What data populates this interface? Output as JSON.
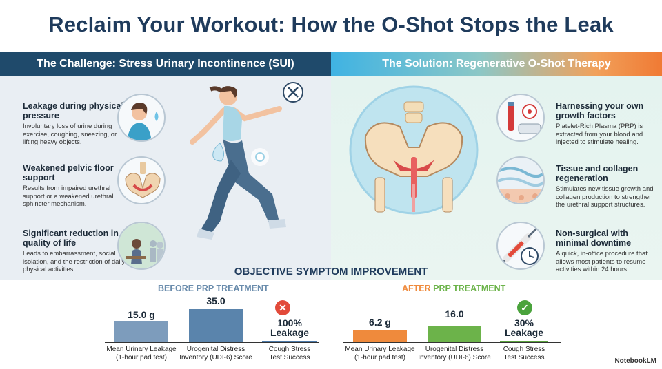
{
  "title": "Reclaim Your Workout: How the O-Shot Stops the Leak",
  "bands": {
    "left": "The Challenge: Stress Urinary Incontinence (SUI)",
    "right": "The Solution: Regenerative O-Shot Therapy"
  },
  "challenge": [
    {
      "heading": "Leakage during physical pressure",
      "desc": "Involuntary loss of urine during exercise, coughing, sneezing, or lifting heavy objects.",
      "icon": "coughing-woman-icon"
    },
    {
      "heading": "Weakened pelvic floor support",
      "desc": "Results from impaired urethral support or a weakened urethral sphincter mechanism.",
      "icon": "pelvis-icon"
    },
    {
      "heading": "Significant reduction in quality of life",
      "desc": "Leads to embarrassment, social isolation, and the restriction of daily physical activities.",
      "icon": "isolated-person-icon"
    }
  ],
  "solution": [
    {
      "heading": "Harnessing your own growth factors",
      "desc": "Platelet-Rich Plasma (PRP) is extracted from your blood and injected to stimulate healing.",
      "icon": "blood-tube-icon"
    },
    {
      "heading": "Tissue and collagen regeneration",
      "desc": "Stimulates new tissue growth and collagen production to strengthen the urethral support structures.",
      "icon": "collagen-tissue-icon"
    },
    {
      "heading": "Non-surgical with minimal downtime",
      "desc": "A quick, in-office procedure that allows most patients to resume activities within 24 hours.",
      "icon": "syringe-clock-icon"
    }
  ],
  "chart_section": {
    "title": "OBJECTIVE SYMPTOM IMPROVEMENT",
    "before_label": "BEFORE PRP TREATMENT",
    "after_label_a": "AFTER",
    "after_label_b": "PRP TREATMENT"
  },
  "chart_data": [
    {
      "type": "bar",
      "title": "BEFORE PRP TREATMENT",
      "categories": [
        "Mean Urinary Leakage (1-hour pad test)",
        "Urogenital Distress Inventory (UDI-6) Score",
        "Cough Stress Test Success"
      ],
      "values": [
        15.0,
        35.0,
        100
      ],
      "labels": [
        "15.0 g",
        "35.0",
        "100%\nLeakage"
      ],
      "colors": [
        "#7d9cbc",
        "#5a84ac",
        "#4a78a8"
      ]
    },
    {
      "type": "bar",
      "title": "AFTER PRP TREATMENT",
      "categories": [
        "Mean Urinary Leakage (1-hour pad test)",
        "Urogenital Distress Inventory (UDI-6) Score",
        "Cough Stress Test Success"
      ],
      "values": [
        6.2,
        16.0,
        30
      ],
      "labels": [
        "6.2 g",
        "16.0",
        "30%\nLeakage"
      ],
      "colors": [
        "#ef8a3c",
        "#6cb34a",
        "#5aa33c"
      ]
    }
  ],
  "cat_labels": {
    "leak": [
      "Mean Urinary Leakage",
      "(1-hour pad test)"
    ],
    "udi": [
      "Urogenital Distress",
      "Inventory (UDI-6) Score"
    ],
    "cough": [
      "Cough Stress",
      "Test Success"
    ]
  },
  "before_vals": {
    "leak": "15.0 g",
    "udi": "35.0",
    "cough_a": "100%",
    "cough_b": "Leakage"
  },
  "after_vals": {
    "leak": "6.2 g",
    "udi": "16.0",
    "cough_a": "30%",
    "cough_b": "Leakage"
  },
  "brand": "NotebookLM"
}
